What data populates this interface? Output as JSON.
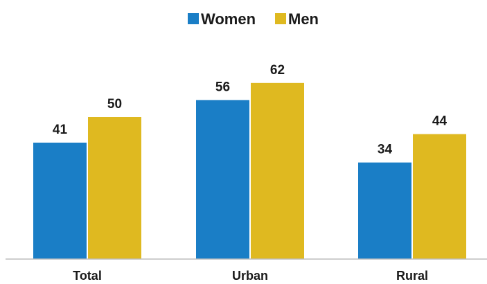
{
  "chart_data": {
    "type": "bar",
    "categories": [
      "Total",
      "Urban",
      "Rural"
    ],
    "series": [
      {
        "name": "Women",
        "values": [
          41,
          56,
          34
        ],
        "color": "#1a7ec6"
      },
      {
        "name": "Men",
        "values": [
          50,
          62,
          44
        ],
        "color": "#dfb920"
      }
    ],
    "title": "",
    "xlabel": "",
    "ylabel": "",
    "ylim": [
      0,
      70
    ],
    "grid": false,
    "legend": "top-center",
    "data_labels": true
  }
}
